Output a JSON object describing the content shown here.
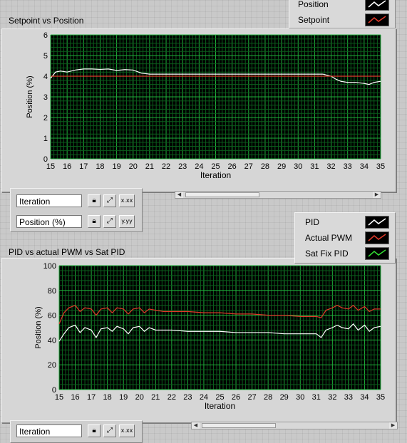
{
  "chart1": {
    "title": "Setpoint vs Position",
    "legend": [
      {
        "label": "Position",
        "color": "#ffffff"
      },
      {
        "label": "Setpoint",
        "color": "#e03a2a"
      }
    ],
    "x_scale_name": "Iteration",
    "y_scale_name": "Position (%)"
  },
  "chart2": {
    "title": "PID  vs actual PWM vs Sat PID",
    "legend": [
      {
        "label": "PID",
        "color": "#ffffff"
      },
      {
        "label": "Actual PWM",
        "color": "#e03a2a"
      },
      {
        "label": "Sat Fix PID",
        "color": "#33dd33"
      }
    ],
    "x_scale_name": "Iteration"
  },
  "tools": {
    "lock_icon": "lock-icon",
    "autoscale_x": "autoscale-x-icon",
    "autoscale_y": "autoscale-y-icon",
    "format_x": "x.xx",
    "format_y": "y.yy"
  },
  "chart_data": [
    {
      "type": "line",
      "title": "Setpoint vs Position",
      "xlabel": "Iteration",
      "ylabel": "Position (%)",
      "xlim": [
        15,
        35
      ],
      "ylim": [
        0,
        6
      ],
      "xticks": [
        "15",
        "16",
        "17",
        "18",
        "19",
        "20",
        "21",
        "22",
        "23",
        "24",
        "25",
        "26",
        "27",
        "28",
        "29",
        "30",
        "31",
        "32",
        "33",
        "34",
        "35"
      ],
      "yticks": [
        "0",
        "1",
        "2",
        "3",
        "4",
        "5",
        "6"
      ],
      "grid": true,
      "series": [
        {
          "name": "Position",
          "color": "#ffffff",
          "x": [
            15,
            15.3,
            15.6,
            16,
            16.5,
            17,
            17.5,
            18,
            18.5,
            19,
            19.5,
            20,
            20.5,
            21,
            21.5,
            22,
            24,
            26,
            28,
            30,
            31,
            31.5,
            32,
            32.3,
            32.6,
            33,
            33.5,
            34,
            34.3,
            34.6,
            35
          ],
          "y": [
            3.9,
            4.2,
            4.25,
            4.2,
            4.3,
            4.35,
            4.35,
            4.33,
            4.35,
            4.28,
            4.32,
            4.3,
            4.15,
            4.1,
            4.1,
            4.1,
            4.1,
            4.1,
            4.1,
            4.1,
            4.1,
            4.1,
            4.0,
            3.85,
            3.75,
            3.7,
            3.7,
            3.65,
            3.6,
            3.7,
            3.75
          ]
        },
        {
          "name": "Setpoint",
          "color": "#e03a2a",
          "x": [
            15,
            35
          ],
          "y": [
            4.0,
            4.0
          ]
        }
      ]
    },
    {
      "type": "line",
      "title": "PID  vs actual PWM vs Sat PID",
      "xlabel": "Iteration",
      "ylabel": "Position (%)",
      "xlim": [
        15,
        35
      ],
      "ylim": [
        0,
        100
      ],
      "xticks": [
        "15",
        "16",
        "17",
        "18",
        "19",
        "20",
        "21",
        "22",
        "23",
        "24",
        "25",
        "26",
        "27",
        "28",
        "29",
        "30",
        "31",
        "32",
        "33",
        "34",
        "35"
      ],
      "yticks": [
        "0",
        "20",
        "40",
        "60",
        "80",
        "100"
      ],
      "grid": true,
      "series": [
        {
          "name": "PID",
          "color": "#ffffff",
          "x": [
            15,
            15.3,
            15.6,
            16,
            16.3,
            16.6,
            17,
            17.3,
            17.6,
            18,
            18.3,
            18.6,
            19,
            19.3,
            19.6,
            20,
            20.3,
            20.6,
            21,
            21.5,
            22,
            23,
            24,
            25,
            26,
            27,
            28,
            29,
            30,
            31,
            31.3,
            31.6,
            32,
            32.3,
            32.6,
            33,
            33.3,
            33.6,
            34,
            34.3,
            34.6,
            35
          ],
          "y": [
            39,
            45,
            50,
            52,
            46,
            50,
            48,
            42,
            49,
            50,
            47,
            51,
            49,
            45,
            50,
            51,
            47,
            50,
            48,
            48,
            48,
            47,
            47,
            47,
            46,
            46,
            46,
            45,
            45,
            45,
            42,
            48,
            50,
            52,
            50,
            49,
            53,
            48,
            52,
            47,
            50,
            51
          ]
        },
        {
          "name": "Actual PWM",
          "color": "#e03a2a",
          "x": [
            15,
            15.3,
            15.6,
            16,
            16.3,
            16.6,
            17,
            17.3,
            17.6,
            18,
            18.3,
            18.6,
            19,
            19.3,
            19.6,
            20,
            20.3,
            20.6,
            21,
            21.5,
            22,
            23,
            24,
            25,
            26,
            27,
            28,
            29,
            30,
            31,
            31.3,
            31.6,
            32,
            32.3,
            32.6,
            33,
            33.3,
            33.6,
            34,
            34.3,
            34.6,
            35
          ],
          "y": [
            53,
            62,
            66,
            68,
            63,
            66,
            65,
            60,
            65,
            66,
            62,
            66,
            65,
            61,
            65,
            66,
            62,
            65,
            64,
            63,
            63,
            63,
            62,
            62,
            61,
            61,
            60,
            60,
            59,
            59,
            58,
            64,
            66,
            68,
            66,
            65,
            68,
            64,
            67,
            63,
            65,
            65
          ]
        },
        {
          "name": "Sat Fix PID",
          "color": "#33dd33",
          "x": [],
          "y": []
        }
      ]
    }
  ]
}
